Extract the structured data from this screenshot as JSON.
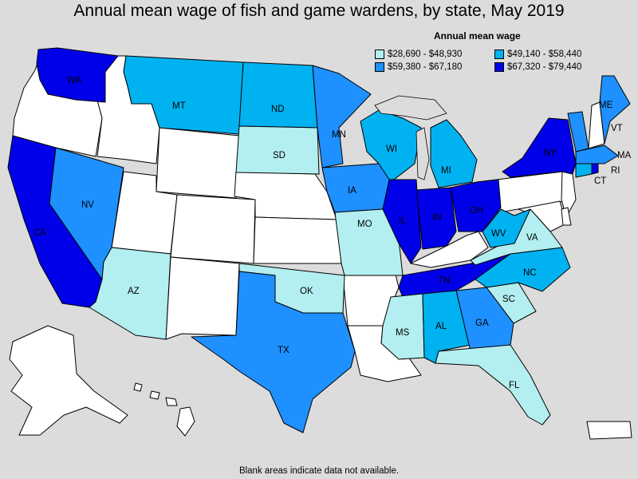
{
  "title": "Annual mean wage of fish and game wardens, by state, May 2019",
  "legend": {
    "title": "Annual mean wage",
    "items": [
      {
        "label": "$28,690 - $48,930",
        "color": "#b3eef0"
      },
      {
        "label": "$49,140 - $58,440",
        "color": "#00b2f0"
      },
      {
        "label": "$59,380 - $67,180",
        "color": "#1e90ff"
      },
      {
        "label": "$67,320 - $79,440",
        "color": "#0000e8"
      }
    ]
  },
  "no_data_color": "#ffffff",
  "footnote": "Blank areas indicate data not available.",
  "states": [
    {
      "abbr": "WA",
      "tier": 3
    },
    {
      "abbr": "CA",
      "tier": 3
    },
    {
      "abbr": "NV",
      "tier": 2
    },
    {
      "abbr": "AZ",
      "tier": 0
    },
    {
      "abbr": "MT",
      "tier": 1
    },
    {
      "abbr": "ND",
      "tier": 1
    },
    {
      "abbr": "SD",
      "tier": 0
    },
    {
      "abbr": "MN",
      "tier": 2
    },
    {
      "abbr": "IA",
      "tier": 2
    },
    {
      "abbr": "MO",
      "tier": 0
    },
    {
      "abbr": "OK",
      "tier": 0
    },
    {
      "abbr": "TX",
      "tier": 2
    },
    {
      "abbr": "WI",
      "tier": 1
    },
    {
      "abbr": "IL",
      "tier": 3
    },
    {
      "abbr": "IN",
      "tier": 3
    },
    {
      "abbr": "OH",
      "tier": 3
    },
    {
      "abbr": "MI",
      "tier": 1
    },
    {
      "abbr": "TN",
      "tier": 3
    },
    {
      "abbr": "MS",
      "tier": 0
    },
    {
      "abbr": "AL",
      "tier": 1
    },
    {
      "abbr": "GA",
      "tier": 2
    },
    {
      "abbr": "FL",
      "tier": 0
    },
    {
      "abbr": "SC",
      "tier": 0
    },
    {
      "abbr": "NC",
      "tier": 1
    },
    {
      "abbr": "VA",
      "tier": 0
    },
    {
      "abbr": "WV",
      "tier": 1
    },
    {
      "abbr": "NY",
      "tier": 3
    },
    {
      "abbr": "VT",
      "tier": 2
    },
    {
      "abbr": "ME",
      "tier": 2
    },
    {
      "abbr": "MA",
      "tier": 2
    },
    {
      "abbr": "CT",
      "tier": 1
    },
    {
      "abbr": "RI",
      "tier": 3
    }
  ]
}
